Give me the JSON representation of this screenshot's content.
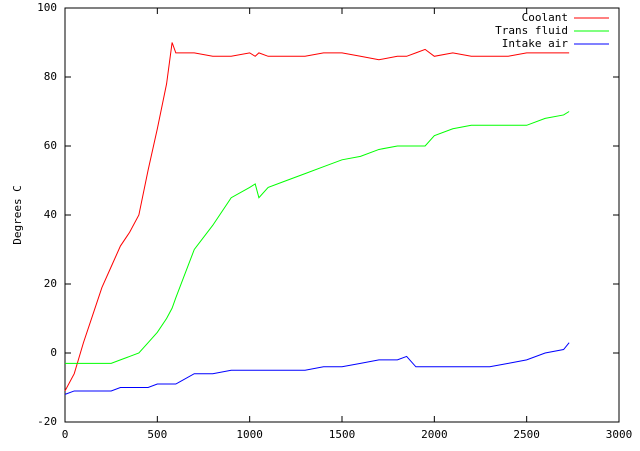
{
  "chart_data": {
    "type": "line",
    "ylabel": "Degrees C",
    "x": [
      0,
      50,
      100,
      150,
      200,
      250,
      300,
      350,
      400,
      450,
      500,
      550,
      580,
      600,
      700,
      800,
      900,
      1000,
      1030,
      1050,
      1100,
      1200,
      1300,
      1400,
      1500,
      1600,
      1700,
      1800,
      1850,
      1900,
      1950,
      2000,
      2100,
      2200,
      2300,
      2400,
      2500,
      2600,
      2700,
      2730
    ],
    "series": [
      {
        "name": "Coolant",
        "color": "#ff0000",
        "values": [
          -11,
          -6,
          3,
          11,
          19,
          25,
          31,
          35,
          40,
          53,
          65,
          78,
          90,
          87,
          87,
          86,
          86,
          87,
          86,
          87,
          86,
          86,
          86,
          87,
          87,
          86,
          85,
          86,
          86,
          87,
          88,
          86,
          87,
          86,
          86,
          86,
          87,
          87,
          87,
          87
        ]
      },
      {
        "name": "Trans fluid",
        "color": "#00ff00",
        "values": [
          -3,
          -3,
          -3,
          -3,
          -3,
          -3,
          -2,
          -1,
          0,
          3,
          6,
          10,
          13,
          16,
          30,
          37,
          45,
          48,
          49,
          45,
          48,
          50,
          52,
          54,
          56,
          57,
          59,
          60,
          60,
          60,
          60,
          63,
          65,
          66,
          66,
          66,
          66,
          68,
          69,
          70
        ]
      },
      {
        "name": "Intake air",
        "color": "#0000ff",
        "values": [
          -12,
          -11,
          -11,
          -11,
          -11,
          -11,
          -10,
          -10,
          -10,
          -10,
          -9,
          -9,
          -9,
          -9,
          -6,
          -6,
          -5,
          -5,
          -5,
          -5,
          -5,
          -5,
          -5,
          -4,
          -4,
          -3,
          -2,
          -2,
          -1,
          -4,
          -4,
          -4,
          -4,
          -4,
          -4,
          -3,
          -2,
          0,
          1,
          3
        ]
      }
    ],
    "xlim": [
      0,
      3000
    ],
    "xticks": [
      0,
      500,
      1000,
      1500,
      2000,
      2500,
      3000
    ],
    "ylim": [
      -20,
      100
    ],
    "yticks": [
      -20,
      0,
      20,
      40,
      60,
      80,
      100
    ],
    "legend": "top right"
  }
}
